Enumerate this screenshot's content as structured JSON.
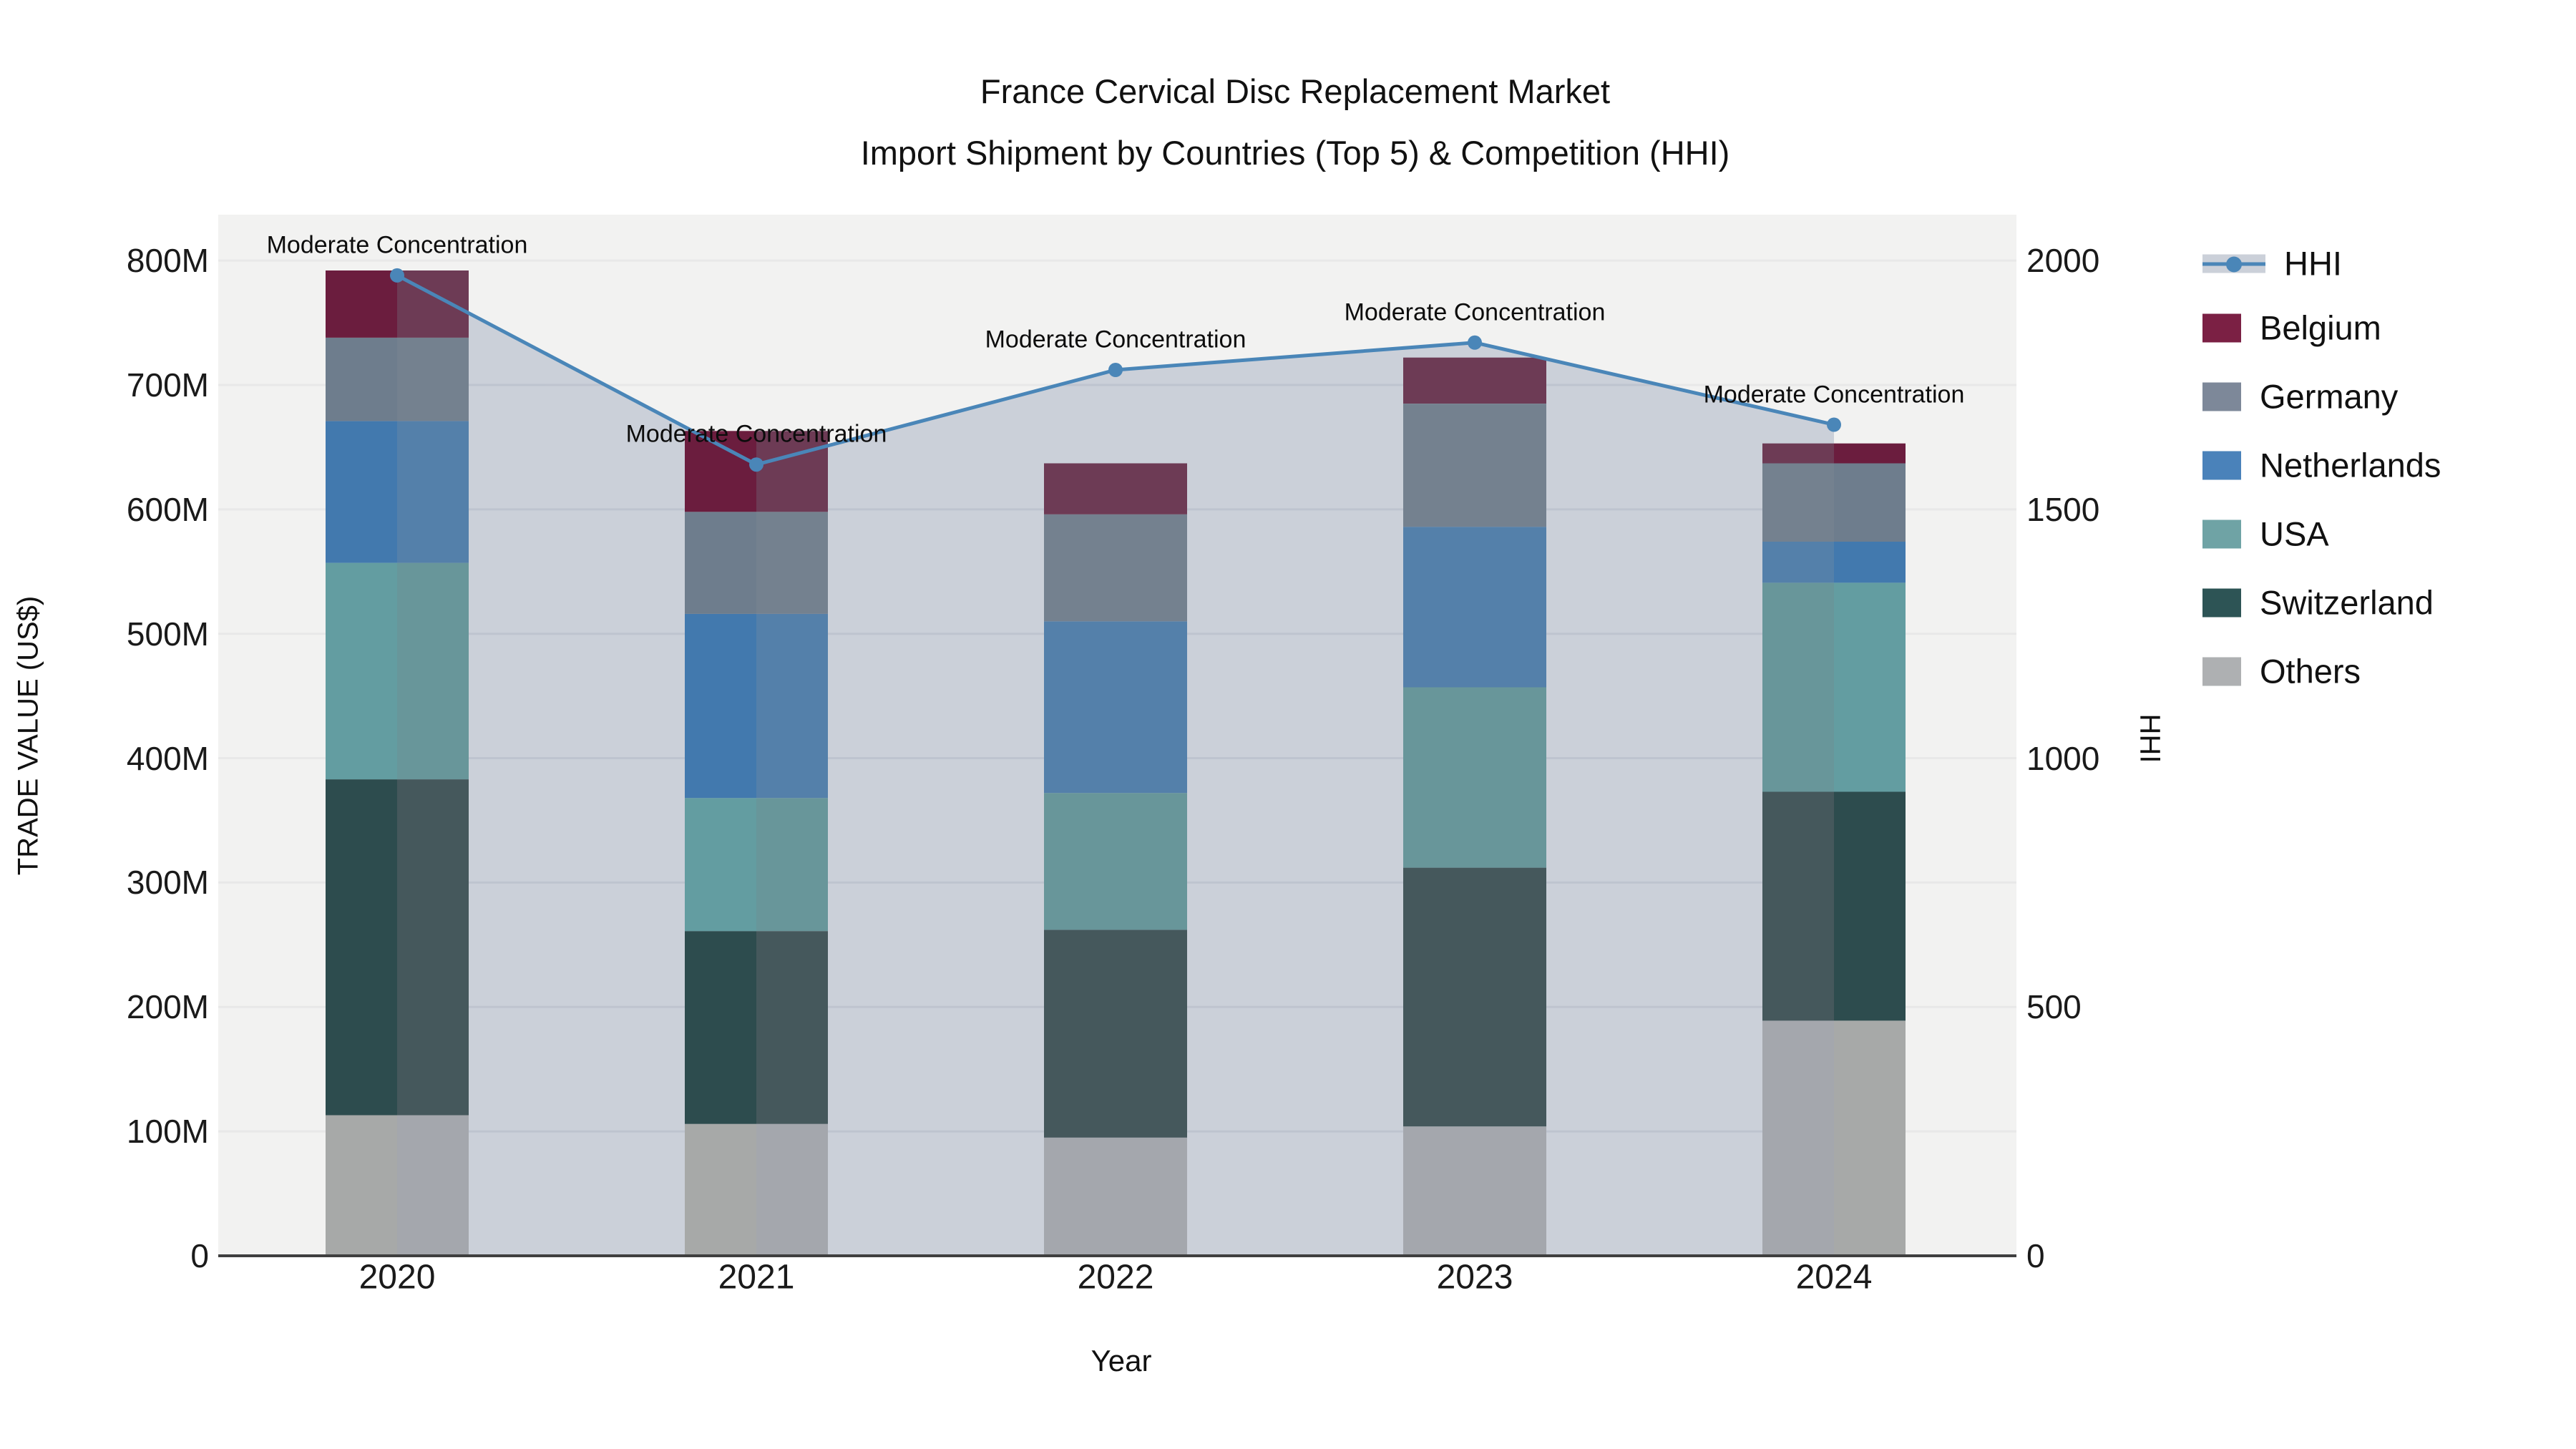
{
  "title": {
    "line1": "France Cervical Disc Replacement Market",
    "line2": "Import Shipment by Countries (Top 5) & Competition (HHI)"
  },
  "axes": {
    "y_left_title": "TRADE VALUE (US$)",
    "y_right_title": "HHI",
    "x_title": "Year",
    "y_left_ticks": [
      "0",
      "100M",
      "200M",
      "300M",
      "400M",
      "500M",
      "600M",
      "700M",
      "800M"
    ],
    "y_right_ticks": [
      "0",
      "500",
      "1000",
      "1500",
      "2000"
    ],
    "x_ticks": [
      "2020",
      "2021",
      "2022",
      "2023",
      "2024"
    ]
  },
  "legend": {
    "items": [
      {
        "key": "hhi",
        "label": "HHI",
        "color": "#4a86b8"
      },
      {
        "key": "belgium",
        "label": "Belgium",
        "color": "#7b2044"
      },
      {
        "key": "germany",
        "label": "Germany",
        "color": "#7d8899"
      },
      {
        "key": "netherlands",
        "label": "Netherlands",
        "color": "#4a82ba"
      },
      {
        "key": "usa",
        "label": "USA",
        "color": "#6fa3a5"
      },
      {
        "key": "switzerland",
        "label": "Switzerland",
        "color": "#2d5455"
      },
      {
        "key": "others",
        "label": "Others",
        "color": "#aeb0b2"
      }
    ]
  },
  "colors": {
    "plot_bg": "#f2f2f1",
    "grid": "#e8e8e8",
    "grid_on_fill": "#b9bfcb",
    "axis_line": "#3f3f3f",
    "hhi_line": "#4a86b8",
    "hhi_fill": "#cbd0d9",
    "bar_pure": {
      "belgium": "#6b1d3e",
      "germany": "#6e7d8d",
      "netherlands": "#4279ae",
      "usa": "#639da1",
      "switzerland": "#2d4c4e",
      "others": "#a7a9a8"
    },
    "bar_washed": {
      "belgium": "#6d3b55",
      "germany": "#74818f",
      "netherlands": "#5480aa",
      "usa": "#68969a",
      "switzerland": "#45585c",
      "others": "#a4a7ad"
    }
  },
  "chart_data": {
    "type": "bar+line",
    "title": "France Cervical Disc Replacement Market — Import Shipment by Countries (Top 5) & Competition (HHI)",
    "categories": [
      "2020",
      "2021",
      "2022",
      "2023",
      "2024"
    ],
    "values_unit": "M US$",
    "stack_order_bottom_to_top": [
      "others",
      "switzerland",
      "usa",
      "netherlands",
      "germany",
      "belgium"
    ],
    "series": [
      {
        "name": "Belgium",
        "key": "belgium",
        "values": [
          54,
          65,
          41,
          37,
          16
        ]
      },
      {
        "name": "Germany",
        "key": "germany",
        "values": [
          67,
          82,
          86,
          99,
          63
        ]
      },
      {
        "name": "Netherlands",
        "key": "netherlands",
        "values": [
          114,
          148,
          138,
          129,
          33
        ]
      },
      {
        "name": "USA",
        "key": "usa",
        "values": [
          174,
          107,
          110,
          145,
          168
        ]
      },
      {
        "name": "Switzerland",
        "key": "switzerland",
        "values": [
          270,
          155,
          167,
          208,
          184
        ]
      },
      {
        "name": "Others",
        "key": "others",
        "values": [
          113,
          106,
          95,
          104,
          189
        ]
      }
    ],
    "bar_totals": [
      792,
      663,
      637,
      722,
      653
    ],
    "hhi_series": {
      "name": "HHI",
      "values": [
        1970,
        1590,
        1780,
        1835,
        1670
      ],
      "axis": "right"
    },
    "annotations": [
      "Moderate Concentration",
      "Moderate Concentration",
      "Moderate Concentration",
      "Moderate Concentration",
      "Moderate Concentration"
    ],
    "ylim_left_musd": [
      0,
      800
    ],
    "ylim_right_hhi": [
      0,
      2000
    ],
    "grid": true,
    "legend_position": "right",
    "bar_side_shading": [
      "pure|washed",
      "pure|washed",
      "washed|washed",
      "washed|washed",
      "washed|pure"
    ]
  }
}
